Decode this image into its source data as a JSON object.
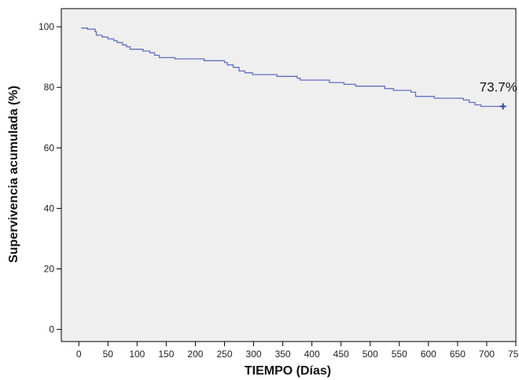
{
  "chart_data": {
    "type": "line",
    "title": "",
    "xlabel": "TIEMPO (Días)",
    "ylabel": "Supervivencia acumulada (%)",
    "xlim": [
      -30,
      750
    ],
    "ylim": [
      -4,
      106
    ],
    "x_ticks": [
      0,
      50,
      100,
      150,
      200,
      250,
      300,
      350,
      400,
      450,
      500,
      550,
      600,
      650,
      700,
      750
    ],
    "y_ticks": [
      0,
      20,
      40,
      60,
      80,
      100
    ],
    "grid": false,
    "legend": "none",
    "series": [
      {
        "step": true,
        "color": "#6070c0",
        "points": [
          [
            4,
            99.6
          ],
          [
            15,
            99.2
          ],
          [
            28,
            98.4
          ],
          [
            30,
            97.2
          ],
          [
            40,
            96.6
          ],
          [
            50,
            96.0
          ],
          [
            60,
            95.4
          ],
          [
            66,
            94.8
          ],
          [
            75,
            94.0
          ],
          [
            82,
            93.4
          ],
          [
            88,
            92.6
          ],
          [
            110,
            92.0
          ],
          [
            122,
            91.4
          ],
          [
            130,
            90.6
          ],
          [
            138,
            89.8
          ],
          [
            165,
            89.4
          ],
          [
            215,
            88.8
          ],
          [
            250,
            88.2
          ],
          [
            255,
            87.4
          ],
          [
            265,
            86.6
          ],
          [
            275,
            85.4
          ],
          [
            285,
            84.8
          ],
          [
            298,
            84.2
          ],
          [
            340,
            83.6
          ],
          [
            375,
            83.0
          ],
          [
            380,
            82.4
          ],
          [
            430,
            81.6
          ],
          [
            455,
            81.0
          ],
          [
            475,
            80.4
          ],
          [
            525,
            79.6
          ],
          [
            540,
            79.0
          ],
          [
            570,
            78.4
          ],
          [
            578,
            77.0
          ],
          [
            610,
            76.4
          ],
          [
            660,
            75.8
          ],
          [
            670,
            75.0
          ],
          [
            680,
            74.2
          ],
          [
            690,
            73.7
          ],
          [
            728,
            73.7
          ]
        ]
      }
    ],
    "censored_marks": [
      [
        728,
        73.7
      ]
    ],
    "annotations": [
      {
        "text": "73.7%",
        "x": 720,
        "y": 78.6
      }
    ],
    "colors": {
      "plot_background": "#efefef",
      "line": "#6070c0",
      "axis": "#000000"
    }
  }
}
